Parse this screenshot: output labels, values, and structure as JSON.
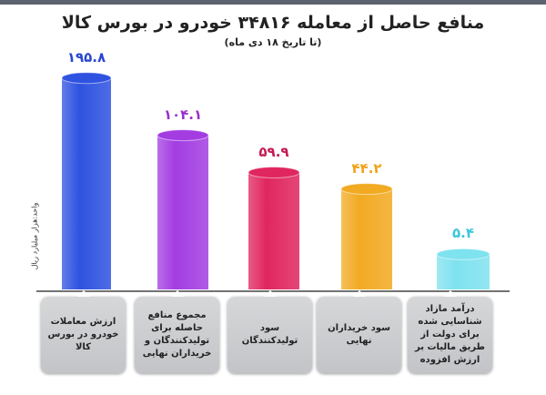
{
  "chart_data": {
    "type": "bar",
    "title": "منافع حاصل از معامله ۳۴۸۱۶ خودرو در بورس کالا",
    "subtitle": "(تا تاریخ ۱۸ دی ماه)",
    "ylabel": "واحد:هزار میلیارد ریال",
    "categories": [
      "ارزش معاملات خودرو در بورس کالا",
      "مجموع منافع حاصله برای تولیدکنندگان و خریداران نهایی",
      "سود تولیدکنندگان",
      "سود خریداران نهایی",
      "درآمد مازاد شناسایی شده برای دولت از طریق مالیات بر ارزش افزوده"
    ],
    "values": [
      195.8,
      104.1,
      59.9,
      44.2,
      5.4
    ],
    "value_labels": [
      "۱۹۵.۸",
      "۱۰۴.۱",
      "۵۹.۹",
      "۴۴.۲",
      "۵.۴"
    ],
    "colors": [
      "#2f52e0",
      "#a33de2",
      "#e0265f",
      "#f2aa22",
      "#7fe2ef"
    ],
    "label_colors": [
      "#2a47d0",
      "#9a2fcf",
      "#c41c55",
      "#f0a21a",
      "#3cc6dc"
    ],
    "grid": false,
    "legend": "none"
  }
}
